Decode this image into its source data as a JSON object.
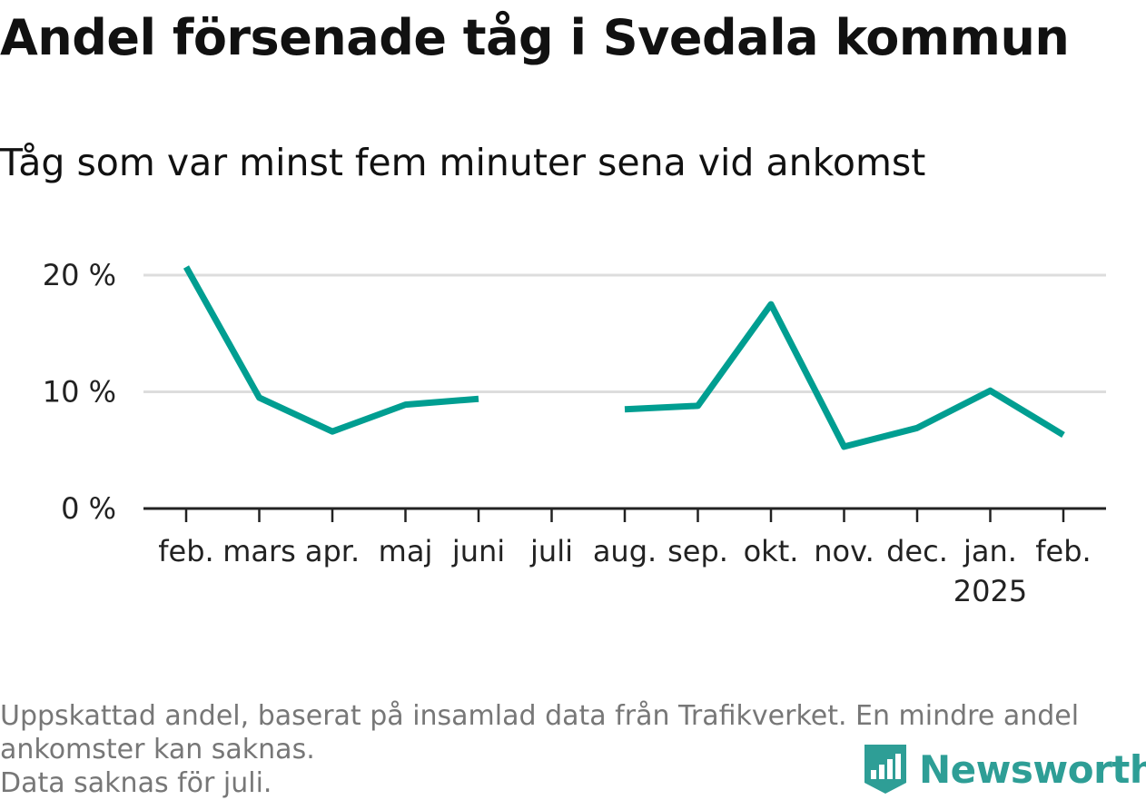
{
  "title": "Andel försenade tåg i Svedala kommun",
  "subtitle": "Tåg som var minst fem minuter sena vid ankomst",
  "colors": {
    "line": "#009e91",
    "grid": "#dddddd",
    "axis": "#222222",
    "brand": "#2e9e96"
  },
  "chart_data": {
    "type": "line",
    "categories": [
      "feb.",
      "mars",
      "apr.",
      "maj",
      "juni",
      "juli",
      "aug.",
      "sep.",
      "okt.",
      "nov.",
      "dec.",
      "jan.",
      "feb."
    ],
    "year_label": {
      "index": 11,
      "text": "2025"
    },
    "series": [
      {
        "values": [
          20.7,
          9.5,
          6.6,
          8.9,
          9.4,
          null,
          8.5,
          8.8,
          17.5,
          5.3,
          6.9,
          10.1,
          6.3
        ]
      }
    ],
    "yticks": [
      0,
      10,
      20
    ],
    "ytick_labels": [
      "0 %",
      "10 %",
      "20 %"
    ],
    "ylim": [
      0,
      20
    ],
    "grid": true,
    "legend": false
  },
  "footnote": {
    "line1": "Uppskattad andel, baserat på insamlad data från Trafikverket. En mindre andel",
    "line2": "ankomster kan saknas.",
    "line3": "Data saknas för juli."
  },
  "logo": {
    "text": "Newsworthy",
    "icon": "bar-chart-shield-icon"
  }
}
